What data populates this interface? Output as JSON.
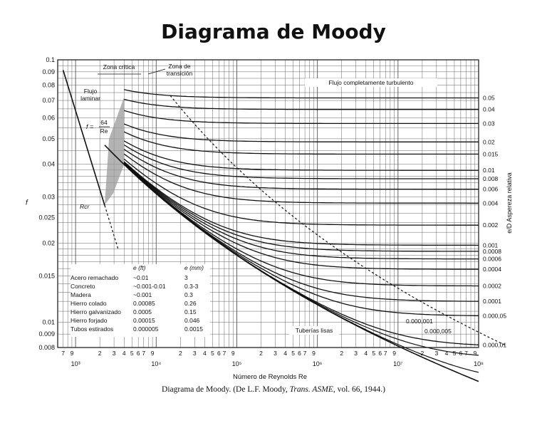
{
  "title": "Diagrama de Moody",
  "caption": {
    "pre": "Diagrama de Moody. (De L.F. Moody, ",
    "journal": "Trans. ASME",
    "post": ", vol. 66, 1944.)"
  },
  "chart_data": {
    "type": "line",
    "title": "Diagrama de Moody",
    "xlabel": "Número de Reynolds Re",
    "ylabel": "f",
    "right_axis_label": "Aspereza relativa",
    "right_axis_symbol": "e/D",
    "x_scale": "log",
    "y_scale": "log",
    "xlim": [
      600,
      100000000
    ],
    "ylim": [
      0.008,
      0.1
    ],
    "x_decade_labels": [
      {
        "value": 1000,
        "label": "10³"
      },
      {
        "value": 10000,
        "label": "10⁴"
      },
      {
        "value": 100000,
        "label": "10⁵"
      },
      {
        "value": 1000000,
        "label": "10⁶"
      },
      {
        "value": 10000000,
        "label": "10⁷"
      },
      {
        "value": 100000000,
        "label": "10⁸"
      }
    ],
    "x_minor_tick_labels": [
      "7",
      "9",
      "2",
      "3",
      "4",
      "5",
      "6",
      "7",
      "9"
    ],
    "y_tick_labels": [
      "0.1",
      "0.09",
      "0.08",
      "0.07",
      "0.06",
      "0.05",
      "0.04",
      "0.03",
      "0.025",
      "0.02",
      "0.015",
      "0.01",
      "0.009",
      "0.008"
    ],
    "roughness_labels": [
      "0.05",
      "0.04",
      "0.03",
      "0.02",
      "0.015",
      "0.01",
      "0.008",
      "0.006",
      "0.004",
      "0.002",
      "0.001",
      "0.0008",
      "0.0006",
      "0.0004",
      "0.0002",
      "0.0001",
      "0.000,05",
      "0.000,01"
    ],
    "roughness_values": [
      0.05,
      0.04,
      0.03,
      0.02,
      0.015,
      0.01,
      0.008,
      0.006,
      0.004,
      0.002,
      0.001,
      0.0008,
      0.0006,
      0.0004,
      0.0002,
      0.0001,
      5e-05,
      1e-05
    ],
    "extra_curve_labels": [
      "0.000,001",
      "0.000,005"
    ],
    "extra_curve_values": [
      1e-06,
      5e-06
    ],
    "laminar": {
      "formula_lhs": "f =",
      "formula_num": "64",
      "formula_den": "Re",
      "re_range": [
        700,
        2300
      ]
    },
    "critical_re": 2300,
    "annotations": {
      "zona_critica": "Zona crítica",
      "zona_transicion_1": "Zona de",
      "zona_transicion_2": "transición",
      "flujo_laminar_1": "Flujo",
      "flujo_laminar_2": "laminar",
      "turbulento": "Flujo completamente turbulento",
      "tuberias_lisas": "Tuberías lisas",
      "recr": "Rcr"
    },
    "material_table": {
      "headers": [
        "",
        "e (ft)",
        "e (mm)"
      ],
      "rows": [
        [
          "Acero remachado",
          "~0.01",
          "3"
        ],
        [
          "Concreto",
          "~0.001-0.01",
          "0.3-3"
        ],
        [
          "Madera",
          "~0.001",
          "0.3"
        ],
        [
          "Hierro colado",
          "0.00085",
          "0.26"
        ],
        [
          "Hierro galvanizado",
          "0.0005",
          "0.15"
        ],
        [
          "Hierro forjado",
          "0.00015",
          "0.046"
        ],
        [
          "Tubos estirados",
          "0.000005",
          "0.0015"
        ]
      ]
    }
  }
}
